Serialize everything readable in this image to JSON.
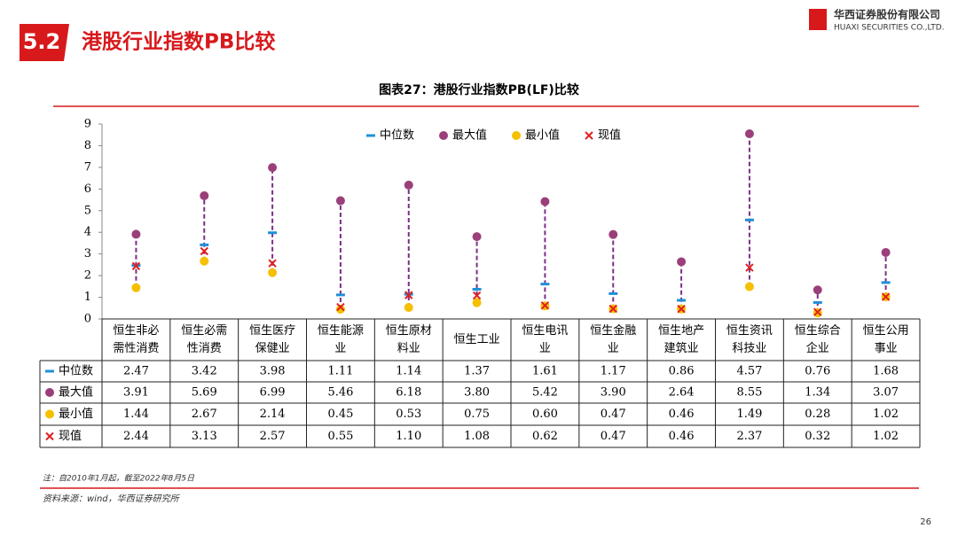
{
  "header": {
    "section": "5.2",
    "title": "港股行业指数PB比较",
    "company": "华西证券股份有限公司",
    "company_en": "HUAXI SECURITIES CO.,LTD."
  },
  "chart_data": {
    "type": "range-dot",
    "title": "图表27：港股行业指数PB(LF)比较",
    "categories": [
      "恒生非必\n需性消费",
      "恒生必需\n性消费",
      "恒生医疗\n保健业",
      "恒生能源\n业",
      "恒生原材\n料业",
      "恒生工业",
      "恒生电讯\n业",
      "恒生金融\n业",
      "恒生地产\n建筑业",
      "恒生资讯\n科技业",
      "恒生综合\n企业",
      "恒生公用\n事业"
    ],
    "ylim": [
      0,
      9
    ],
    "yticks": [
      0,
      1,
      2,
      3,
      4,
      5,
      6,
      7,
      8,
      9
    ],
    "range_color": "#7b2f86",
    "series": [
      {
        "name": "中位数",
        "color": "#1e90d8",
        "marker": "dash",
        "values": [
          2.47,
          3.42,
          3.98,
          1.11,
          1.14,
          1.37,
          1.61,
          1.17,
          0.86,
          4.57,
          0.76,
          1.68
        ],
        "value_labels": [
          "2.47",
          "3.42",
          "3.98",
          "1.11",
          "1.14",
          "1.37",
          "1.61",
          "1.17",
          "0.86",
          "4.57",
          "0.76",
          "1.68"
        ]
      },
      {
        "name": "最大值",
        "color": "#9b3f7a",
        "marker": "circle",
        "values": [
          3.91,
          5.69,
          6.99,
          5.46,
          6.18,
          3.8,
          5.42,
          3.9,
          2.64,
          8.55,
          1.34,
          3.07
        ],
        "value_labels": [
          "3.91",
          "5.69",
          "6.99",
          "5.46",
          "6.18",
          "3.80",
          "5.42",
          "3.90",
          "2.64",
          "8.55",
          "1.34",
          "3.07"
        ]
      },
      {
        "name": "最小值",
        "color": "#f5c000",
        "marker": "circle",
        "values": [
          1.44,
          2.67,
          2.14,
          0.45,
          0.53,
          0.75,
          0.6,
          0.47,
          0.46,
          1.49,
          0.28,
          1.02
        ],
        "value_labels": [
          "1.44",
          "2.67",
          "2.14",
          "0.45",
          "0.53",
          "0.75",
          "0.60",
          "0.47",
          "0.46",
          "1.49",
          "0.28",
          "1.02"
        ]
      },
      {
        "name": "现值",
        "color": "#e02020",
        "marker": "x",
        "values": [
          2.44,
          3.13,
          2.57,
          0.55,
          1.1,
          1.08,
          0.62,
          0.47,
          0.46,
          2.37,
          0.32,
          1.02
        ],
        "value_labels": [
          "2.44",
          "3.13",
          "2.57",
          "0.55",
          "1.10",
          "1.08",
          "0.62",
          "0.47",
          "0.46",
          "2.37",
          "0.32",
          "1.02"
        ]
      }
    ]
  },
  "footer": {
    "note": "注：自2010年1月起，截至2022年8月5日",
    "source": "资料来源：wind，华西证券研究所",
    "page": "26"
  }
}
